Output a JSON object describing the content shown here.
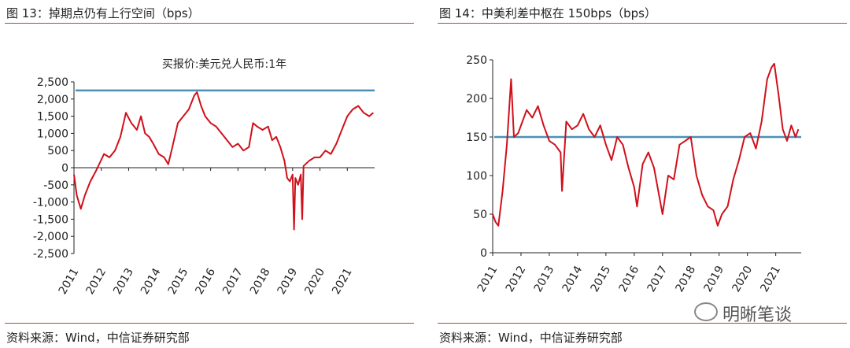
{
  "charts": [
    {
      "figure_title": "图 13：掉期点仍有上行空间（bps）",
      "source": "资料来源：Wind，中信证券研究部"
    },
    {
      "figure_title": "图 14：中美利差中枢在 150bps（bps）",
      "source": "资料来源：Wind，中信证券研究部"
    }
  ],
  "watermark": {
    "text": "明晰笔谈",
    "icon": "wechat-icon"
  },
  "chart_data": [
    {
      "type": "line",
      "title": "买报价:美元兑人民币:1年",
      "x_tick_labels": [
        "2011",
        "2012",
        "2013",
        "2014",
        "2015",
        "2016",
        "2017",
        "2018",
        "2019",
        "2020",
        "2021"
      ],
      "y_tick_labels": [
        "2,500",
        "2,000",
        "1,500",
        "1,000",
        "500",
        "0",
        "-500",
        "-1,000",
        "-1,500",
        "-2,000",
        "-2,500"
      ],
      "ylim": [
        -2500,
        2500
      ],
      "xlim": [
        2011,
        2022
      ],
      "line_color": "#d0101b",
      "reference_line": {
        "value": 2250,
        "color": "#4a90b5"
      },
      "series": [
        {
          "x": [
            2011.0,
            2011.1,
            2011.25,
            2011.4,
            2011.6,
            2011.8,
            2011.95,
            2012.1,
            2012.3,
            2012.5,
            2012.7,
            2012.9,
            2013.1,
            2013.3,
            2013.45,
            2013.6,
            2013.75,
            2013.9,
            2014.1,
            2014.3,
            2014.45,
            2014.6,
            2014.8,
            2015.0,
            2015.2,
            2015.4,
            2015.5,
            2015.65,
            2015.8,
            2016.0,
            2016.2,
            2016.4,
            2016.6,
            2016.8,
            2017.0,
            2017.2,
            2017.4,
            2017.55,
            2017.7,
            2017.9,
            2018.1,
            2018.25,
            2018.4,
            2018.55,
            2018.7,
            2018.8,
            2018.9,
            2019.0,
            2019.05,
            2019.1,
            2019.2,
            2019.3,
            2019.35,
            2019.4,
            2019.6,
            2019.8,
            2020.0,
            2020.2,
            2020.4,
            2020.6,
            2020.8,
            2021.0,
            2021.2,
            2021.4,
            2021.6,
            2021.8,
            2021.95
          ],
          "y": [
            -200,
            -800,
            -1200,
            -800,
            -400,
            -100,
            150,
            400,
            300,
            500,
            900,
            1600,
            1300,
            1100,
            1500,
            1000,
            900,
            700,
            400,
            300,
            100,
            600,
            1300,
            1500,
            1700,
            2100,
            2200,
            1800,
            1500,
            1300,
            1200,
            1000,
            800,
            600,
            700,
            500,
            600,
            1300,
            1200,
            1100,
            1200,
            800,
            900,
            600,
            200,
            -300,
            -400,
            -200,
            -1800,
            -300,
            -500,
            -200,
            -1500,
            50,
            200,
            300,
            300,
            500,
            400,
            700,
            1100,
            1500,
            1700,
            1800,
            1600,
            1500,
            1600
          ]
        }
      ]
    },
    {
      "type": "line",
      "title": "",
      "x_tick_labels": [
        "2011",
        "2012",
        "2013",
        "2014",
        "2015",
        "2016",
        "2017",
        "2018",
        "2019",
        "2020",
        "2021"
      ],
      "y_tick_labels": [
        "250",
        "200",
        "150",
        "100",
        "50",
        "0"
      ],
      "ylim": [
        0,
        250
      ],
      "xlim": [
        2011,
        2021.9
      ],
      "line_color": "#d0101b",
      "reference_line": {
        "value": 150,
        "color": "#4a90b5"
      },
      "series": [
        {
          "x": [
            2011.0,
            2011.1,
            2011.2,
            2011.35,
            2011.5,
            2011.65,
            2011.75,
            2011.9,
            2012.05,
            2012.2,
            2012.4,
            2012.6,
            2012.8,
            2013.0,
            2013.2,
            2013.4,
            2013.45,
            2013.6,
            2013.8,
            2014.0,
            2014.2,
            2014.4,
            2014.6,
            2014.8,
            2015.0,
            2015.2,
            2015.4,
            2015.6,
            2015.8,
            2016.0,
            2016.1,
            2016.3,
            2016.5,
            2016.7,
            2016.9,
            2017.0,
            2017.2,
            2017.4,
            2017.6,
            2017.8,
            2018.0,
            2018.2,
            2018.4,
            2018.6,
            2018.8,
            2018.95,
            2019.1,
            2019.3,
            2019.5,
            2019.7,
            2019.9,
            2020.1,
            2020.3,
            2020.5,
            2020.7,
            2020.85,
            2020.95,
            2021.1,
            2021.25,
            2021.4,
            2021.55,
            2021.7,
            2021.8
          ],
          "y": [
            50,
            40,
            35,
            80,
            140,
            225,
            150,
            155,
            170,
            185,
            175,
            190,
            165,
            145,
            140,
            130,
            80,
            170,
            160,
            165,
            180,
            160,
            150,
            165,
            140,
            120,
            150,
            140,
            110,
            85,
            60,
            115,
            130,
            110,
            70,
            50,
            100,
            95,
            140,
            145,
            150,
            100,
            75,
            60,
            55,
            35,
            50,
            60,
            95,
            120,
            150,
            155,
            135,
            170,
            225,
            240,
            245,
            205,
            160,
            145,
            165,
            150,
            160
          ]
        }
      ]
    }
  ]
}
